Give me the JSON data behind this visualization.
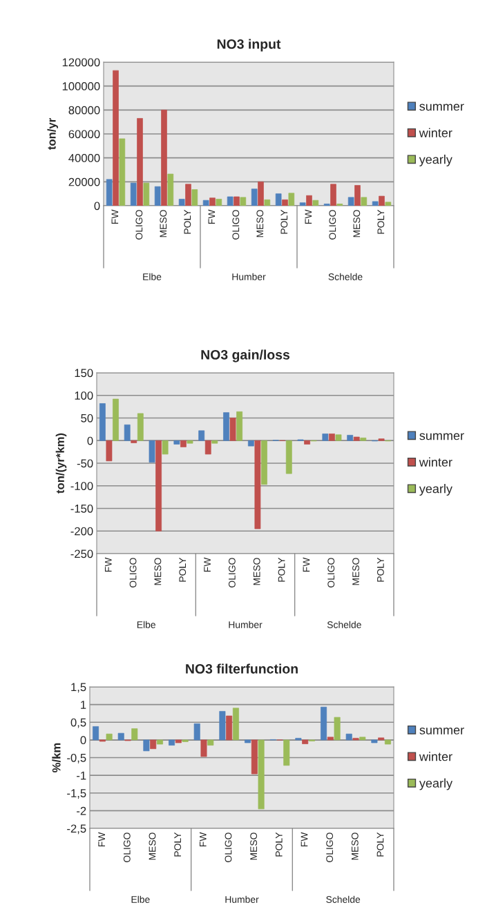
{
  "chart_data": [
    {
      "type": "bar",
      "title": "NO3 input",
      "ylabel": "ton/yr",
      "categories": [
        "FW",
        "OLIGO",
        "MESO",
        "POLY",
        "FW",
        "OLIGO",
        "MESO",
        "POLY",
        "FW",
        "OLIGO",
        "MESO",
        "POLY"
      ],
      "series": [
        {
          "name": "summer",
          "color": "#4f81bd",
          "values": [
            22000,
            19000,
            16000,
            5500,
            4500,
            7500,
            14000,
            10000,
            2500,
            1500,
            7000,
            3500
          ]
        },
        {
          "name": "winter",
          "color": "#c0504d",
          "values": [
            113000,
            73000,
            80000,
            18000,
            6500,
            7500,
            20000,
            5000,
            8500,
            18000,
            17000,
            8000
          ]
        },
        {
          "name": "yearly",
          "color": "#9bbb59",
          "values": [
            56000,
            19000,
            26500,
            13500,
            5500,
            7000,
            5000,
            10500,
            4500,
            1500,
            7000,
            3000
          ]
        }
      ],
      "ylim": [
        0,
        120000
      ],
      "yticks": [
        0,
        20000,
        40000,
        60000,
        80000,
        100000,
        120000
      ],
      "grid": "y",
      "legend": "right",
      "annotations": [
        "Elbe",
        "Humber",
        "Schelde"
      ]
    },
    {
      "type": "bar",
      "title": "NO3 gain/loss",
      "ylabel": "ton/(yr*km)",
      "categories": [
        "FW",
        "OLIGO",
        "MESO",
        "POLY",
        "FW",
        "OLIGO",
        "MESO",
        "POLY",
        "FW",
        "OLIGO",
        "MESO",
        "POLY"
      ],
      "series": [
        {
          "name": "summer",
          "color": "#4f81bd",
          "values": [
            82,
            35,
            -48,
            -8,
            22,
            62,
            -12,
            1,
            2,
            15,
            12,
            -1
          ]
        },
        {
          "name": "winter",
          "color": "#c0504d",
          "values": [
            -45,
            -5,
            -200,
            -14,
            -30,
            50,
            -195,
            0,
            -8,
            15,
            8,
            4
          ]
        },
        {
          "name": "yearly",
          "color": "#9bbb59",
          "values": [
            92,
            60,
            -30,
            -6,
            -6,
            64,
            -97,
            -73,
            -1,
            13,
            6,
            -1
          ]
        }
      ],
      "ylim": [
        -250,
        150
      ],
      "yticks": [
        -250,
        -200,
        -150,
        -100,
        -50,
        0,
        50,
        100,
        150
      ],
      "grid": "y",
      "legend": "right",
      "annotations": [
        "Elbe",
        "Humber",
        "Schelde"
      ]
    },
    {
      "type": "bar",
      "title": "NO3 filterfunction",
      "ylabel": "%/km",
      "categories": [
        "FW",
        "OLIGO",
        "MESO",
        "POLY",
        "FW",
        "OLIGO",
        "MESO",
        "POLY",
        "FW",
        "OLIGO",
        "MESO",
        "POLY"
      ],
      "series": [
        {
          "name": "summer",
          "color": "#4f81bd",
          "values": [
            0.38,
            0.19,
            -0.31,
            -0.15,
            0.46,
            0.81,
            -0.08,
            0.01,
            0.05,
            0.93,
            0.17,
            -0.08
          ]
        },
        {
          "name": "winter",
          "color": "#c0504d",
          "values": [
            -0.04,
            -0.02,
            -0.25,
            -0.08,
            -0.47,
            0.68,
            -0.96,
            0,
            -0.11,
            0.08,
            0.05,
            0.06
          ]
        },
        {
          "name": "yearly",
          "color": "#9bbb59",
          "values": [
            0.17,
            0.32,
            -0.12,
            -0.05,
            -0.15,
            0.9,
            -1.95,
            -0.72,
            -0.03,
            0.64,
            0.08,
            -0.12
          ]
        }
      ],
      "ylim": [
        -2.5,
        1.5
      ],
      "yticks": [
        {
          "value": -2.5,
          "label": "-2,5"
        },
        {
          "value": -2,
          "label": "-2"
        },
        {
          "value": -1.5,
          "label": "-1,5"
        },
        {
          "value": -1,
          "label": "-1"
        },
        {
          "value": -0.5,
          "label": "-0,5"
        },
        {
          "value": 0,
          "label": "0"
        },
        {
          "value": 0.5,
          "label": "0,5"
        },
        {
          "value": 1,
          "label": "1"
        },
        {
          "value": 1.5,
          "label": "1,5"
        }
      ],
      "grid": "y",
      "legend": "right",
      "annotations": [
        "Elbe",
        "Humber",
        "Schelde"
      ]
    }
  ]
}
